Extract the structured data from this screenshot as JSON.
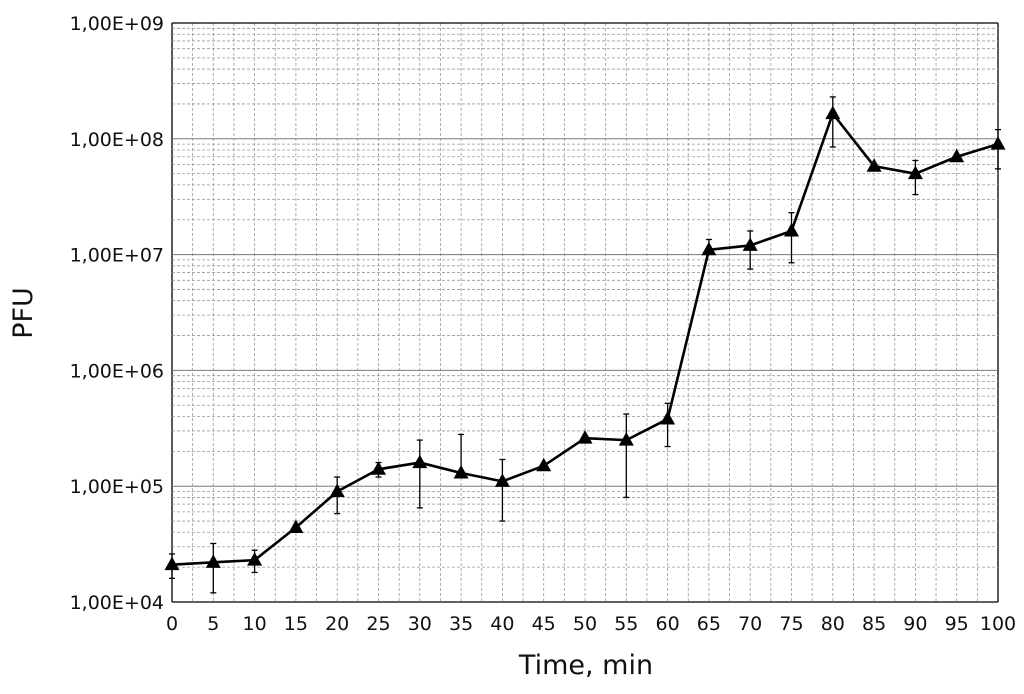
{
  "chart_data": {
    "type": "line",
    "title": "",
    "xlabel": "Time, min",
    "ylabel": "PFU",
    "y_scale": "log",
    "ylim": [
      10000,
      1000000000
    ],
    "xlim": [
      0,
      100
    ],
    "x_ticks": [
      "0",
      "5",
      "10",
      "15",
      "20",
      "25",
      "30",
      "35",
      "40",
      "45",
      "50",
      "55",
      "60",
      "65",
      "70",
      "75",
      "80",
      "85",
      "90",
      "95",
      "100"
    ],
    "y_ticks": [
      "1,00E+04",
      "1,00E+05",
      "1,00E+06",
      "1,00E+07",
      "1,00E+08",
      "1,00E+09"
    ],
    "grid": true,
    "marker": "triangle",
    "line_color": "#000000",
    "series": [
      {
        "x": [
          0,
          5,
          10,
          15,
          20,
          25,
          30,
          35,
          40,
          45,
          50,
          55,
          60,
          65,
          70,
          75,
          80,
          85,
          90,
          95,
          100
        ],
        "values": [
          21000,
          22000,
          23000,
          44000,
          90000,
          140000,
          160000,
          130000,
          110000,
          150000,
          260000,
          250000,
          380000,
          11000000,
          12000000,
          16000000,
          165000000,
          58000000,
          50000000,
          70000000,
          90000000
        ],
        "error_high": [
          26000,
          32000,
          28000,
          44000,
          120000,
          160000,
          250000,
          280000,
          170000,
          150000,
          260000,
          420000,
          520000,
          13500000,
          16000000,
          23000000,
          230000000,
          58000000,
          65000000,
          70000000,
          120000000
        ],
        "error_low": [
          16000,
          12000,
          18000,
          44000,
          58000,
          120000,
          65000,
          130000,
          50000,
          150000,
          260000,
          80000,
          220000,
          11000000,
          7500000,
          8500000,
          85000000,
          58000000,
          33000000,
          70000000,
          55000000
        ]
      }
    ]
  }
}
